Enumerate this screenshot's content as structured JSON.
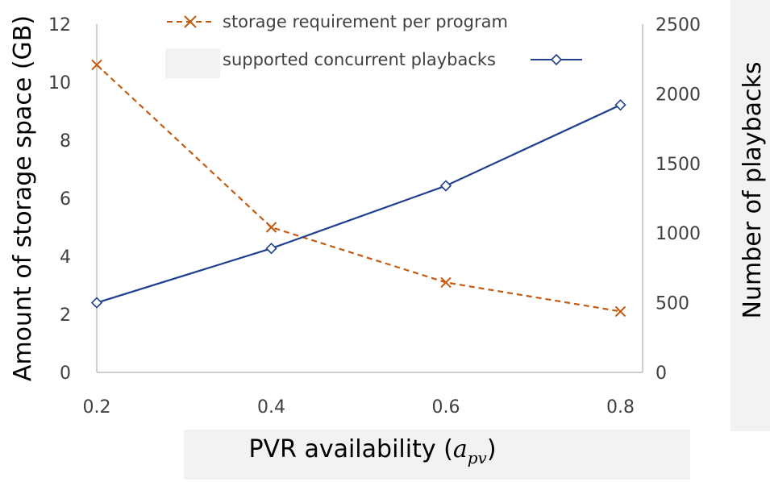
{
  "chart_data": {
    "type": "line",
    "x": [
      0.2,
      0.4,
      0.6,
      0.8
    ],
    "x_tick_labels": [
      "0.2",
      "0.4",
      "0.6",
      "0.8"
    ],
    "xlabel_main": "PVR availability (",
    "xlabel_symbol": "a",
    "xlabel_subscript": "pv",
    "xlabel_close": ")",
    "ylabel_left": "Amount of storage space (GB)",
    "ylabel_right": "Number of playbacks",
    "ylim_left": [
      0,
      12
    ],
    "ylim_right": [
      0,
      2500
    ],
    "left_ticks": [
      0,
      2,
      4,
      6,
      8,
      10,
      12
    ],
    "left_tick_labels": [
      "0",
      "2",
      "4",
      "6",
      "8",
      "10",
      "12"
    ],
    "right_ticks": [
      0,
      500,
      1000,
      1500,
      2000,
      2500
    ],
    "right_tick_labels": [
      "0",
      "500",
      "1000",
      "1500",
      "2000",
      "2500"
    ],
    "grid": false,
    "legend_position": "top",
    "series": [
      {
        "name": "storage requirement per program",
        "axis": "left",
        "values": [
          10.6,
          5.0,
          3.1,
          2.1
        ],
        "color": "#c55a11",
        "line_style": "dashed",
        "marker": "x"
      },
      {
        "name": "supported concurrent playbacks",
        "axis": "right",
        "values": [
          500,
          890,
          1340,
          1920
        ],
        "color": "#1f3f8f",
        "line_style": "solid",
        "marker": "diamond"
      }
    ]
  }
}
